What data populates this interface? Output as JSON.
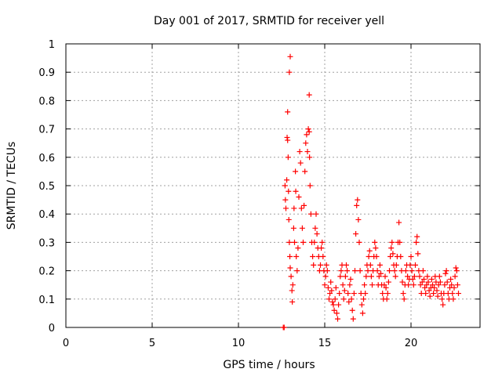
{
  "chart_data": {
    "type": "scatter",
    "title": "Day 001 of 2017, SRMTID for receiver yell",
    "xlabel": "GPS time / hours",
    "ylabel": "SRMTID / TECUs",
    "xlim": [
      0,
      24
    ],
    "ylim": [
      0,
      1
    ],
    "xticks": [
      0,
      5,
      10,
      15,
      20
    ],
    "yticks": [
      0,
      0.1,
      0.2,
      0.3,
      0.4,
      0.5,
      0.6,
      0.7,
      0.8,
      0.9,
      1
    ],
    "grid": true,
    "marker": "+",
    "color": "#ff0000",
    "series": [
      {
        "name": "SRMTID",
        "points": [
          [
            12.6,
            0.0
          ],
          [
            12.65,
            0.0
          ],
          [
            13.0,
            0.955
          ],
          [
            12.95,
            0.9
          ],
          [
            12.85,
            0.76
          ],
          [
            14.1,
            0.82
          ],
          [
            12.7,
            0.5
          ],
          [
            12.72,
            0.45
          ],
          [
            12.75,
            0.42
          ],
          [
            12.8,
            0.52
          ],
          [
            12.82,
            0.67
          ],
          [
            12.85,
            0.66
          ],
          [
            12.88,
            0.6
          ],
          [
            12.9,
            0.48
          ],
          [
            12.92,
            0.38
          ],
          [
            12.95,
            0.3
          ],
          [
            12.98,
            0.25
          ],
          [
            13.0,
            0.21
          ],
          [
            13.05,
            0.18
          ],
          [
            13.1,
            0.13
          ],
          [
            13.12,
            0.09
          ],
          [
            13.15,
            0.15
          ],
          [
            13.2,
            0.35
          ],
          [
            13.22,
            0.42
          ],
          [
            13.25,
            0.3
          ],
          [
            13.3,
            0.55
          ],
          [
            13.32,
            0.48
          ],
          [
            13.35,
            0.25
          ],
          [
            13.4,
            0.2
          ],
          [
            13.45,
            0.28
          ],
          [
            13.5,
            0.46
          ],
          [
            13.55,
            0.62
          ],
          [
            13.6,
            0.58
          ],
          [
            13.65,
            0.42
          ],
          [
            13.7,
            0.35
          ],
          [
            13.75,
            0.3
          ],
          [
            13.8,
            0.43
          ],
          [
            13.85,
            0.55
          ],
          [
            13.9,
            0.65
          ],
          [
            13.95,
            0.68
          ],
          [
            14.0,
            0.62
          ],
          [
            14.05,
            0.7
          ],
          [
            14.1,
            0.69
          ],
          [
            14.12,
            0.6
          ],
          [
            14.15,
            0.5
          ],
          [
            14.2,
            0.4
          ],
          [
            14.25,
            0.3
          ],
          [
            14.3,
            0.25
          ],
          [
            14.35,
            0.22
          ],
          [
            14.4,
            0.3
          ],
          [
            14.45,
            0.35
          ],
          [
            14.5,
            0.4
          ],
          [
            14.55,
            0.33
          ],
          [
            14.6,
            0.28
          ],
          [
            14.65,
            0.25
          ],
          [
            14.7,
            0.2
          ],
          [
            14.75,
            0.22
          ],
          [
            14.8,
            0.28
          ],
          [
            14.85,
            0.3
          ],
          [
            14.9,
            0.25
          ],
          [
            14.95,
            0.2
          ],
          [
            15.0,
            0.15
          ],
          [
            15.05,
            0.18
          ],
          [
            15.1,
            0.22
          ],
          [
            15.15,
            0.2
          ],
          [
            15.2,
            0.14
          ],
          [
            15.25,
            0.1
          ],
          [
            15.3,
            0.12
          ],
          [
            15.35,
            0.16
          ],
          [
            15.4,
            0.13
          ],
          [
            15.45,
            0.09
          ],
          [
            15.5,
            0.08
          ],
          [
            15.55,
            0.06
          ],
          [
            15.6,
            0.1
          ],
          [
            15.65,
            0.14
          ],
          [
            15.7,
            0.05
          ],
          [
            15.75,
            0.03
          ],
          [
            15.8,
            0.08
          ],
          [
            15.85,
            0.12
          ],
          [
            15.9,
            0.18
          ],
          [
            15.95,
            0.2
          ],
          [
            16.0,
            0.22
          ],
          [
            16.05,
            0.15
          ],
          [
            16.1,
            0.1
          ],
          [
            16.15,
            0.13
          ],
          [
            16.2,
            0.18
          ],
          [
            16.25,
            0.22
          ],
          [
            16.3,
            0.2
          ],
          [
            16.35,
            0.12
          ],
          [
            16.4,
            0.09
          ],
          [
            16.45,
            0.15
          ],
          [
            16.5,
            0.17
          ],
          [
            16.55,
            0.1
          ],
          [
            16.6,
            0.06
          ],
          [
            16.65,
            0.03
          ],
          [
            16.7,
            0.12
          ],
          [
            16.75,
            0.2
          ],
          [
            16.8,
            0.33
          ],
          [
            16.85,
            0.43
          ],
          [
            16.9,
            0.45
          ],
          [
            16.95,
            0.38
          ],
          [
            17.0,
            0.3
          ],
          [
            17.05,
            0.2
          ],
          [
            17.1,
            0.12
          ],
          [
            17.15,
            0.08
          ],
          [
            17.2,
            0.05
          ],
          [
            17.25,
            0.1
          ],
          [
            17.3,
            0.15
          ],
          [
            17.35,
            0.12
          ],
          [
            17.4,
            0.18
          ],
          [
            17.45,
            0.22
          ],
          [
            17.5,
            0.2
          ],
          [
            17.55,
            0.25
          ],
          [
            17.6,
            0.27
          ],
          [
            17.65,
            0.22
          ],
          [
            17.7,
            0.18
          ],
          [
            17.75,
            0.15
          ],
          [
            17.8,
            0.2
          ],
          [
            17.85,
            0.25
          ],
          [
            17.9,
            0.3
          ],
          [
            17.95,
            0.28
          ],
          [
            18.0,
            0.25
          ],
          [
            18.05,
            0.2
          ],
          [
            18.1,
            0.15
          ],
          [
            18.15,
            0.18
          ],
          [
            18.2,
            0.22
          ],
          [
            18.25,
            0.19
          ],
          [
            18.3,
            0.15
          ],
          [
            18.35,
            0.12
          ],
          [
            18.4,
            0.1
          ],
          [
            18.45,
            0.15
          ],
          [
            18.5,
            0.18
          ],
          [
            18.55,
            0.14
          ],
          [
            18.6,
            0.1
          ],
          [
            18.65,
            0.12
          ],
          [
            18.7,
            0.16
          ],
          [
            18.75,
            0.2
          ],
          [
            18.8,
            0.25
          ],
          [
            18.85,
            0.28
          ],
          [
            18.9,
            0.3
          ],
          [
            18.95,
            0.26
          ],
          [
            19.0,
            0.22
          ],
          [
            19.05,
            0.2
          ],
          [
            19.1,
            0.18
          ],
          [
            19.15,
            0.22
          ],
          [
            19.2,
            0.25
          ],
          [
            19.25,
            0.3
          ],
          [
            19.3,
            0.37
          ],
          [
            19.35,
            0.3
          ],
          [
            19.4,
            0.25
          ],
          [
            19.45,
            0.2
          ],
          [
            19.5,
            0.16
          ],
          [
            19.55,
            0.12
          ],
          [
            19.6,
            0.1
          ],
          [
            19.65,
            0.15
          ],
          [
            19.7,
            0.2
          ],
          [
            19.75,
            0.22
          ],
          [
            19.8,
            0.18
          ],
          [
            19.85,
            0.15
          ],
          [
            19.9,
            0.17
          ],
          [
            19.95,
            0.22
          ],
          [
            20.0,
            0.25
          ],
          [
            20.05,
            0.2
          ],
          [
            20.1,
            0.17
          ],
          [
            20.15,
            0.15
          ],
          [
            20.2,
            0.18
          ],
          [
            20.25,
            0.22
          ],
          [
            20.3,
            0.3
          ],
          [
            20.35,
            0.32
          ],
          [
            20.4,
            0.26
          ],
          [
            20.45,
            0.2
          ],
          [
            20.5,
            0.18
          ],
          [
            20.55,
            0.15
          ],
          [
            20.6,
            0.12
          ],
          [
            20.65,
            0.16
          ],
          [
            20.7,
            0.2
          ],
          [
            20.75,
            0.17
          ],
          [
            20.8,
            0.14
          ],
          [
            20.85,
            0.12
          ],
          [
            20.9,
            0.15
          ],
          [
            20.95,
            0.18
          ],
          [
            21.0,
            0.16
          ],
          [
            21.05,
            0.13
          ],
          [
            21.1,
            0.11
          ],
          [
            21.15,
            0.14
          ],
          [
            21.2,
            0.17
          ],
          [
            21.25,
            0.15
          ],
          [
            21.3,
            0.12
          ],
          [
            21.35,
            0.14
          ],
          [
            21.4,
            0.18
          ],
          [
            21.45,
            0.16
          ],
          [
            21.5,
            0.13
          ],
          [
            21.55,
            0.11
          ],
          [
            21.6,
            0.15
          ],
          [
            21.65,
            0.18
          ],
          [
            21.7,
            0.16
          ],
          [
            21.75,
            0.12
          ],
          [
            21.8,
            0.1
          ],
          [
            21.85,
            0.08
          ],
          [
            21.9,
            0.12
          ],
          [
            21.95,
            0.15
          ],
          [
            22.0,
            0.19
          ],
          [
            22.05,
            0.2
          ],
          [
            22.1,
            0.16
          ],
          [
            22.15,
            0.12
          ],
          [
            22.2,
            0.1
          ],
          [
            22.25,
            0.14
          ],
          [
            22.3,
            0.17
          ],
          [
            22.35,
            0.15
          ],
          [
            22.4,
            0.12
          ],
          [
            22.45,
            0.1
          ],
          [
            22.5,
            0.14
          ],
          [
            22.55,
            0.18
          ],
          [
            22.6,
            0.21
          ],
          [
            22.65,
            0.2
          ],
          [
            22.7,
            0.15
          ],
          [
            22.75,
            0.12
          ]
        ]
      }
    ]
  }
}
